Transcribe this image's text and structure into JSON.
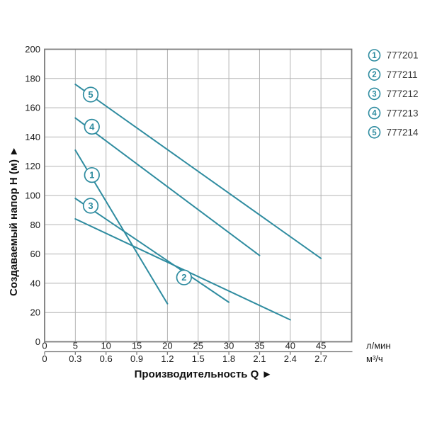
{
  "chart_data": {
    "type": "line",
    "title": "",
    "xlabel": "Производительность Q ►",
    "ylabel": "Создаваемый напор H (м) ►",
    "xlim": [
      0,
      50
    ],
    "ylim": [
      0,
      200
    ],
    "grid": true,
    "x_unit_primary": "л/мин",
    "x_unit_secondary": "м³/ч",
    "x_tick_values": [
      0,
      5,
      10,
      15,
      20,
      25,
      30,
      35,
      40,
      45
    ],
    "x_ticks_lmin": [
      "0",
      "5",
      "10",
      "15",
      "20",
      "25",
      "30",
      "35",
      "40",
      "45"
    ],
    "x_ticks_m3h": [
      "0",
      "0.3",
      "0.6",
      "0.9",
      "1.2",
      "1.5",
      "1.8",
      "2.1",
      "2.4",
      "2.7"
    ],
    "y_tick_values": [
      0,
      20,
      40,
      60,
      80,
      100,
      120,
      140,
      160,
      180,
      200
    ],
    "legend_position": "outside-top-right",
    "series": [
      {
        "num": "1",
        "code": "777201",
        "points": [
          [
            5,
            131
          ],
          [
            20,
            26
          ]
        ],
        "label_pos": [
          7.7,
          114
        ]
      },
      {
        "num": "2",
        "code": "777211",
        "points": [
          [
            5,
            84
          ],
          [
            40,
            15
          ]
        ],
        "label_pos": [
          22.7,
          44
        ]
      },
      {
        "num": "3",
        "code": "777212",
        "points": [
          [
            5,
            98
          ],
          [
            30,
            27
          ]
        ],
        "label_pos": [
          7.5,
          93
        ]
      },
      {
        "num": "4",
        "code": "777213",
        "points": [
          [
            5,
            153
          ],
          [
            35,
            59
          ]
        ],
        "label_pos": [
          7.7,
          147
        ]
      },
      {
        "num": "5",
        "code": "777214",
        "points": [
          [
            5,
            176
          ],
          [
            45,
            57
          ]
        ],
        "label_pos": [
          7.5,
          169
        ]
      }
    ],
    "colors": {
      "series_line": "#2f8ca0",
      "marker_fill": "#ffffff",
      "grid": "#b3b3b3",
      "plot_border": "#7a7a7a",
      "tick_label": "#1c1c1c",
      "axis_title": "#111111",
      "legend_code": "#3b3b3b",
      "background": "#ffffff"
    }
  }
}
